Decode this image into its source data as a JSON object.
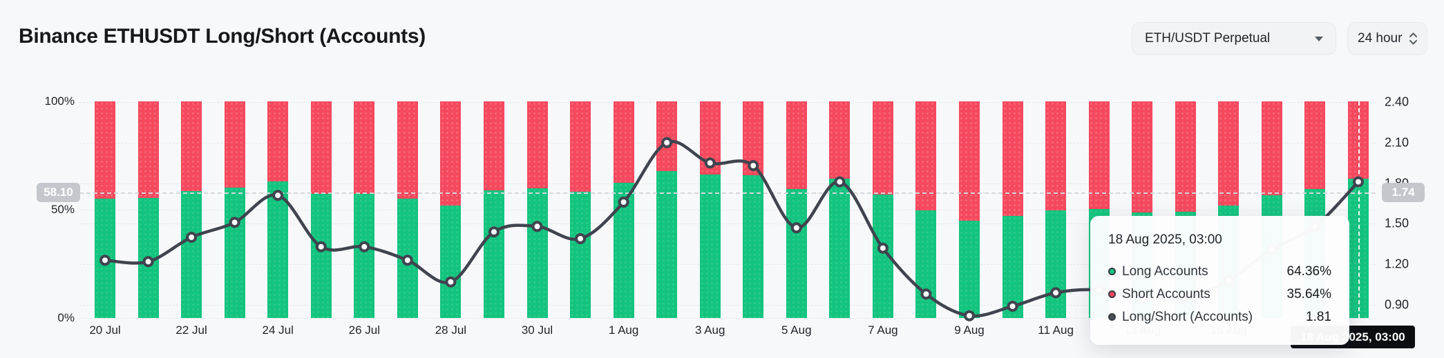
{
  "header": {
    "title": "Binance ETHUSDT Long/Short (Accounts)",
    "symbol_select": {
      "value": "ETH/USDT Perpetual"
    },
    "interval_select": {
      "value": "24 hour"
    }
  },
  "colors": {
    "long": "#13c47f",
    "short": "#f5495e",
    "ratio_line": "#3f444e",
    "crosshair_badge": "#c4c8cd",
    "date_badge": "#0c0e12",
    "background": "#f7f8fa"
  },
  "chart_data": {
    "type": "bar+line",
    "title": "Binance ETHUSDT Long/Short (Accounts)",
    "stacked_percent_bars": true,
    "categories": [
      "20 Jul",
      "21 Jul",
      "22 Jul",
      "23 Jul",
      "24 Jul",
      "25 Jul",
      "26 Jul",
      "27 Jul",
      "28 Jul",
      "29 Jul",
      "30 Jul",
      "31 Jul",
      "1 Aug",
      "2 Aug",
      "3 Aug",
      "4 Aug",
      "5 Aug",
      "6 Aug",
      "7 Aug",
      "8 Aug",
      "9 Aug",
      "10 Aug",
      "11 Aug",
      "12 Aug",
      "13 Aug",
      "14 Aug",
      "15 Aug",
      "16 Aug",
      "17 Aug",
      "18 Aug"
    ],
    "x_axis_labels_shown": [
      "20 Jul",
      "22 Jul",
      "24 Jul",
      "26 Jul",
      "28 Jul",
      "30 Jul",
      "1 Aug",
      "3 Aug",
      "5 Aug",
      "7 Aug",
      "9 Aug",
      "11 Aug"
    ],
    "series": [
      {
        "name": "Long Accounts",
        "type": "bar",
        "unit": "%",
        "color": "#13c47f",
        "values": [
          55.1,
          55.3,
          58.5,
          60.3,
          63.2,
          57.2,
          57.2,
          55.2,
          51.9,
          59.0,
          59.8,
          58.3,
          62.4,
          67.8,
          66.1,
          65.8,
          59.6,
          64.3,
          56.9,
          49.6,
          45.0,
          47.2,
          49.8,
          50.3,
          48.7,
          49.0,
          51.9,
          56.7,
          59.7,
          64.36
        ]
      },
      {
        "name": "Short Accounts",
        "type": "bar",
        "unit": "%",
        "color": "#f5495e",
        "values": [
          44.9,
          44.7,
          41.5,
          39.7,
          36.8,
          42.8,
          42.8,
          44.8,
          48.1,
          41.0,
          40.2,
          41.7,
          37.6,
          32.2,
          33.9,
          34.2,
          40.4,
          35.7,
          43.1,
          50.4,
          55.0,
          52.8,
          50.2,
          49.7,
          51.3,
          51.0,
          48.1,
          43.3,
          40.3,
          35.64
        ]
      },
      {
        "name": "Long/Short (Accounts)",
        "type": "line",
        "color": "#3f444e",
        "values": [
          1.23,
          1.22,
          1.4,
          1.51,
          1.71,
          1.33,
          1.33,
          1.23,
          1.07,
          1.44,
          1.48,
          1.39,
          1.66,
          2.1,
          1.95,
          1.93,
          1.47,
          1.81,
          1.32,
          0.98,
          0.82,
          0.89,
          0.99,
          1.01,
          0.95,
          0.96,
          1.08,
          1.31,
          1.48,
          1.81
        ]
      }
    ],
    "left_axis": {
      "ticks": [
        "100%",
        "50%",
        "0%"
      ],
      "tick_values": [
        100,
        50,
        0
      ],
      "range": [
        0,
        100
      ]
    },
    "right_axis": {
      "ticks": [
        "2.40",
        "2.10",
        "1.80",
        "1.50",
        "1.20",
        "0.90"
      ],
      "tick_values": [
        2.4,
        2.1,
        1.8,
        1.5,
        1.2,
        0.9
      ]
    },
    "grid": "dashed-horizontal",
    "legend_position": "none"
  },
  "crosshair": {
    "y_left_label": "58.10",
    "y_right_label": "1.74",
    "x_label": "18 Aug 2025, 03:00"
  },
  "tooltip": {
    "title": "18 Aug 2025, 03:00",
    "rows": [
      {
        "label": "Long Accounts",
        "value": "64.36%",
        "dot_color": "#13c47f"
      },
      {
        "label": "Short Accounts",
        "value": "35.64%",
        "dot_color": "#f5495e"
      },
      {
        "label": "Long/Short (Accounts)",
        "value": "1.81",
        "dot_color": "#4a4f58"
      }
    ]
  }
}
